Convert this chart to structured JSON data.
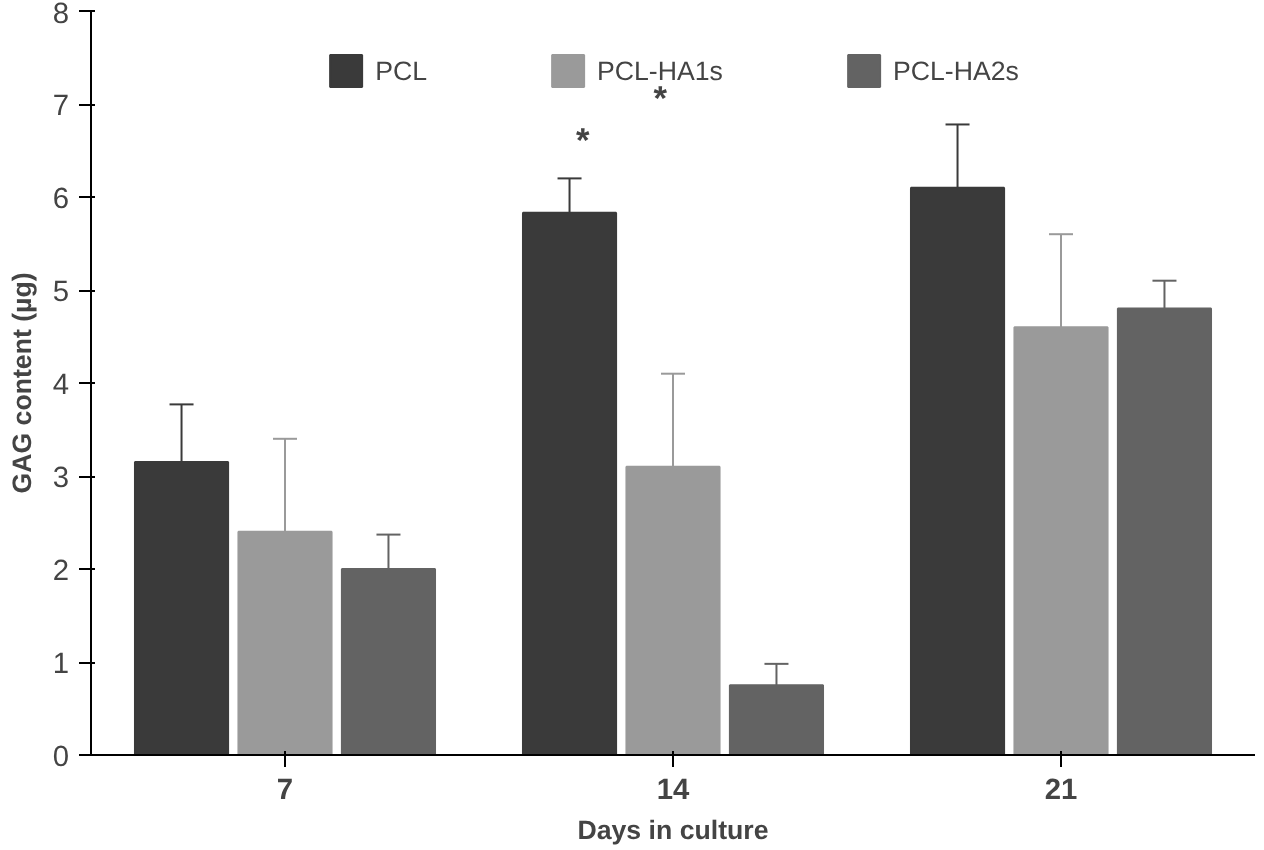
{
  "chart_data": {
    "type": "bar",
    "xlabel": "Days in culture",
    "ylabel": "GAG content (µg)",
    "categories": [
      "7",
      "14",
      "21"
    ],
    "series": [
      {
        "name": "PCL",
        "color": "#3a3a3a",
        "values": [
          3.15,
          5.83,
          6.1
        ],
        "errors": [
          [
            3.15,
            3.77
          ],
          [
            5.83,
            6.2
          ],
          [
            6.1,
            6.78
          ]
        ]
      },
      {
        "name": "PCL-HA1s",
        "color": "#9a9a9a",
        "values": [
          2.4,
          3.1,
          4.6
        ],
        "errors": [
          [
            2.4,
            3.4
          ],
          [
            3.1,
            4.1
          ],
          [
            4.6,
            5.6
          ]
        ]
      },
      {
        "name": "PCL-HA2s",
        "color": "#636363",
        "values": [
          2.0,
          0.75,
          4.8
        ],
        "errors": [
          [
            2.0,
            2.37
          ],
          [
            0.75,
            0.98
          ],
          [
            4.8,
            5.1
          ]
        ]
      }
    ],
    "ylim": [
      0,
      8
    ],
    "yticks": [
      0,
      1,
      2,
      3,
      4,
      5,
      6,
      7,
      8
    ],
    "grid": false,
    "legend": "top",
    "annotations": [
      "*",
      "*"
    ]
  }
}
